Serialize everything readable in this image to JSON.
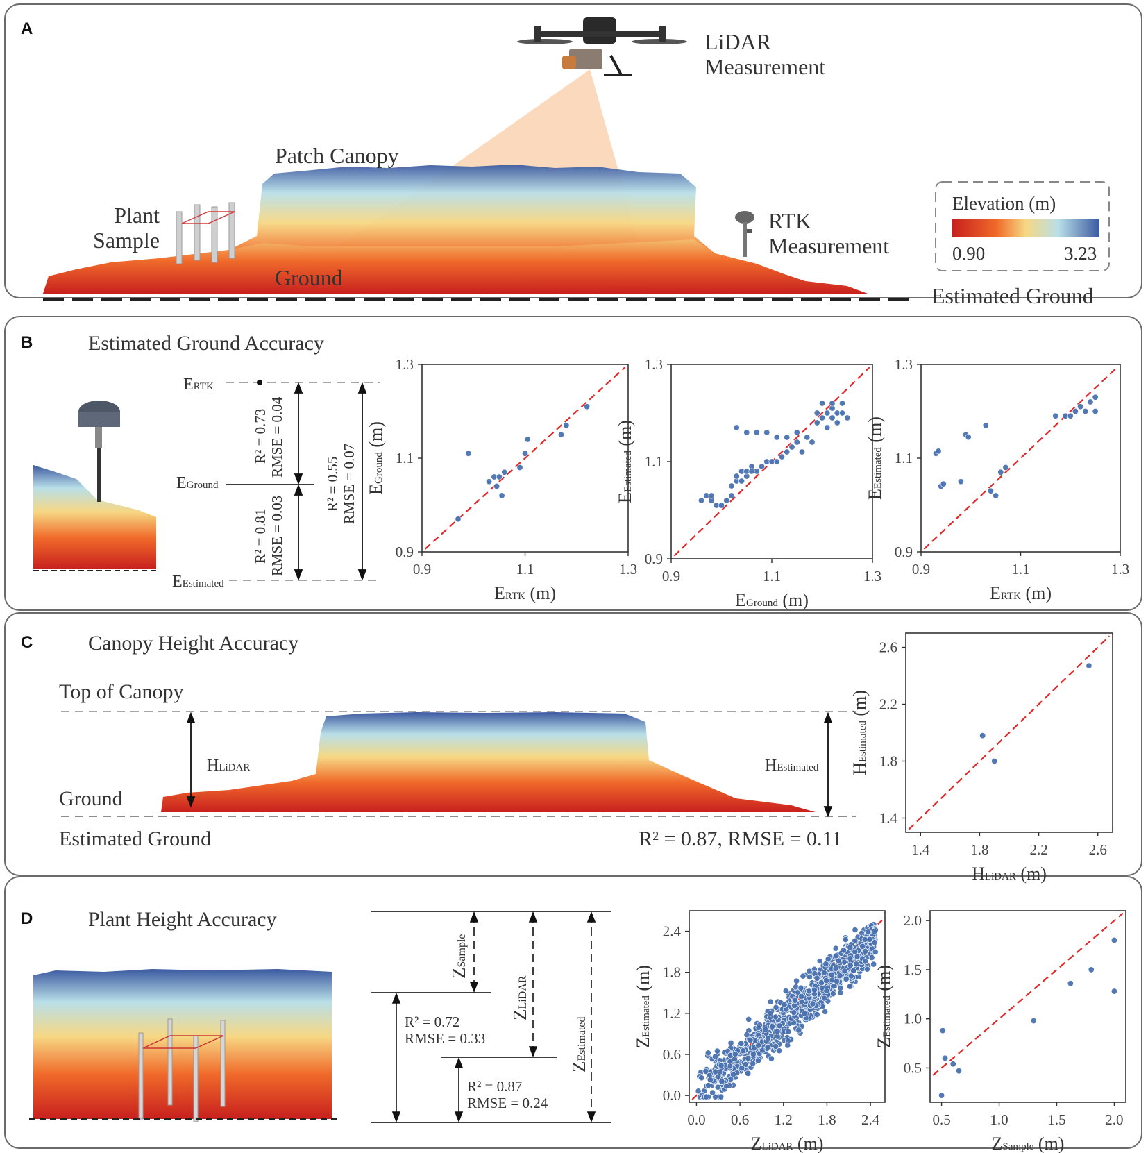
{
  "panel_a": {
    "label": "A",
    "lidar_line1": "LiDAR",
    "lidar_line2": "Measurement",
    "patch_canopy": "Patch Canopy",
    "plant_line1": "Plant",
    "plant_line2": "Sample",
    "ground": "Ground",
    "rtk_line1": "RTK",
    "rtk_line2": "Measurement",
    "estimated_ground": "Estimated Ground",
    "legend": {
      "title": "Elevation (m)",
      "min": "0.90",
      "max": "3.23",
      "colors": [
        "#c8201e",
        "#f06a2a",
        "#f6d884",
        "#b9dfe8",
        "#3c5aa0"
      ]
    }
  },
  "panel_b": {
    "label": "B",
    "title": "Estimated Ground Accuracy",
    "e_rtk": "E",
    "e_rtk_sub": "RTK",
    "e_ground": "E",
    "e_ground_sub": "Ground",
    "e_estimated": "E",
    "e_estimated_sub": "Estimated",
    "stat1_r2": "R² = 0.73",
    "stat1_rmse": "RMSE = 0.04",
    "stat2_r2": "R² = 0.81",
    "stat2_rmse": "RMSE = 0.03",
    "stat3_r2": "R² = 0.55",
    "stat3_rmse": "RMSE = 0.07"
  },
  "panel_c": {
    "label": "C",
    "title": "Canopy Height Accuracy",
    "top_of_canopy": "Top of Canopy",
    "ground": "Ground",
    "estimated_ground": "Estimated Ground",
    "h_lidar": "H",
    "h_lidar_sub": "LiDAR",
    "h_estimated": "H",
    "h_estimated_sub": "Estimated",
    "stats": "R² = 0.87, RMSE = 0.11"
  },
  "panel_d": {
    "label": "D",
    "title": "Plant Height Accuracy",
    "z_sample": "Z",
    "z_sample_sub": "Sample",
    "z_lidar": "Z",
    "z_lidar_sub": "LiDAR",
    "z_estimated": "Z",
    "z_estimated_sub": "Estimated",
    "stat1_r2": "R² = 0.72",
    "stat1_rmse": "RMSE = 0.33",
    "stat2_r2": "R² = 0.87",
    "stat2_rmse": "RMSE = 0.24"
  },
  "chart_data": [
    {
      "id": "b1",
      "type": "scatter",
      "xlabel": "E",
      "xlabel_sub": "RTK",
      "xlabel_unit": " (m)",
      "ylabel": "E",
      "ylabel_sub": "Ground",
      "ylabel_unit": " (m)",
      "xlim": [
        0.9,
        1.3
      ],
      "ylim": [
        0.9,
        1.3
      ],
      "xticks": [
        "0.9",
        "1.1",
        "1.3"
      ],
      "yticks": [
        "0.9",
        "1.1",
        "1.3"
      ],
      "reference_line": "y = x",
      "points": [
        [
          0.97,
          0.97
        ],
        [
          0.99,
          1.11
        ],
        [
          1.03,
          1.05
        ],
        [
          1.04,
          1.06
        ],
        [
          1.045,
          1.04
        ],
        [
          1.05,
          1.06
        ],
        [
          1.055,
          1.02
        ],
        [
          1.06,
          1.07
        ],
        [
          1.09,
          1.08
        ],
        [
          1.1,
          1.11
        ],
        [
          1.105,
          1.14
        ],
        [
          1.17,
          1.15
        ],
        [
          1.18,
          1.17
        ],
        [
          1.22,
          1.21
        ]
      ]
    },
    {
      "id": "b2",
      "type": "scatter",
      "xlabel": "E",
      "xlabel_sub": "Ground",
      "xlabel_unit": " (m)",
      "ylabel": "E",
      "ylabel_sub": "Estimated",
      "ylabel_unit": " (m)",
      "xlim": [
        0.9,
        1.3
      ],
      "ylim": [
        0.9,
        1.3
      ],
      "xticks": [
        "0.9",
        "1.1",
        "1.3"
      ],
      "yticks": [
        "0.9",
        "1.1",
        "1.3"
      ],
      "reference_line": "y = x",
      "points": [
        [
          0.96,
          1.02
        ],
        [
          0.97,
          1.03
        ],
        [
          0.98,
          1.02
        ],
        [
          0.99,
          1.01
        ],
        [
          1.0,
          1.01
        ],
        [
          1.01,
          1.02
        ],
        [
          1.02,
          1.03
        ],
        [
          1.02,
          1.05
        ],
        [
          1.03,
          1.06
        ],
        [
          1.03,
          1.07
        ],
        [
          1.04,
          1.08
        ],
        [
          1.04,
          1.06
        ],
        [
          1.05,
          1.07
        ],
        [
          1.05,
          1.08
        ],
        [
          1.06,
          1.09
        ],
        [
          1.07,
          1.08
        ],
        [
          1.08,
          1.09
        ],
        [
          1.09,
          1.1
        ],
        [
          1.1,
          1.1
        ],
        [
          1.11,
          1.1
        ],
        [
          1.12,
          1.11
        ],
        [
          1.13,
          1.12
        ],
        [
          1.14,
          1.13
        ],
        [
          1.15,
          1.14
        ],
        [
          1.16,
          1.12
        ],
        [
          1.03,
          1.17
        ],
        [
          1.05,
          1.16
        ],
        [
          1.07,
          1.16
        ],
        [
          1.09,
          1.16
        ],
        [
          1.11,
          1.15
        ],
        [
          1.13,
          1.15
        ],
        [
          1.15,
          1.16
        ],
        [
          1.17,
          1.15
        ],
        [
          1.18,
          1.14
        ],
        [
          1.19,
          1.18
        ],
        [
          1.2,
          1.19
        ],
        [
          1.21,
          1.2
        ],
        [
          1.22,
          1.21
        ],
        [
          1.23,
          1.2
        ],
        [
          1.24,
          1.22
        ],
        [
          1.2,
          1.22
        ],
        [
          1.22,
          1.19
        ],
        [
          1.23,
          1.18
        ],
        [
          1.25,
          1.19
        ],
        [
          1.21,
          1.17
        ],
        [
          1.24,
          1.2
        ],
        [
          1.19,
          1.2
        ],
        [
          1.22,
          1.22
        ],
        [
          0.98,
          1.03
        ],
        [
          1.06,
          1.08
        ]
      ]
    },
    {
      "id": "b3",
      "type": "scatter",
      "xlabel": "E",
      "xlabel_sub": "RTK",
      "xlabel_unit": " (m)",
      "ylabel": "E",
      "ylabel_sub": "Estimated",
      "ylabel_unit": " (m)",
      "xlim": [
        0.9,
        1.3
      ],
      "ylim": [
        0.9,
        1.3
      ],
      "xticks": [
        "0.9",
        "1.1",
        "1.3"
      ],
      "yticks": [
        "0.9",
        "1.1",
        "1.3"
      ],
      "reference_line": "y = x",
      "points": [
        [
          0.93,
          1.11
        ],
        [
          0.935,
          1.115
        ],
        [
          0.94,
          1.04
        ],
        [
          0.945,
          1.045
        ],
        [
          0.98,
          1.05
        ],
        [
          0.99,
          1.15
        ],
        [
          0.995,
          1.145
        ],
        [
          1.03,
          1.17
        ],
        [
          1.04,
          1.03
        ],
        [
          1.05,
          1.02
        ],
        [
          1.06,
          1.07
        ],
        [
          1.07,
          1.08
        ],
        [
          1.17,
          1.19
        ],
        [
          1.19,
          1.19
        ],
        [
          1.2,
          1.19
        ],
        [
          1.21,
          1.2
        ],
        [
          1.22,
          1.21
        ],
        [
          1.23,
          1.2
        ],
        [
          1.24,
          1.22
        ],
        [
          1.25,
          1.2
        ],
        [
          1.25,
          1.23
        ]
      ]
    },
    {
      "id": "c1",
      "type": "scatter",
      "xlabel": "H",
      "xlabel_sub": "LiDAR",
      "xlabel_unit": " (m)",
      "ylabel": "H",
      "ylabel_sub": "Estimated",
      "ylabel_unit": " (m)",
      "xlim": [
        1.3,
        2.7
      ],
      "ylim": [
        1.3,
        2.7
      ],
      "xticks": [
        "1.4",
        "1.8",
        "2.2",
        "2.6"
      ],
      "yticks": [
        "1.4",
        "1.8",
        "2.2",
        "2.6"
      ],
      "reference_line": "y = x",
      "points": [
        [
          1.82,
          1.98
        ],
        [
          1.9,
          1.8
        ],
        [
          2.54,
          2.47
        ]
      ]
    },
    {
      "id": "d1",
      "type": "scatter",
      "xlabel": "Z",
      "xlabel_sub": "LiDAR",
      "xlabel_unit": " (m)",
      "ylabel": "Z",
      "ylabel_sub": "Estimated",
      "ylabel_unit": " (m)",
      "xlim": [
        -0.1,
        2.6
      ],
      "ylim": [
        -0.1,
        2.7
      ],
      "xticks": [
        "0.0",
        "0.6",
        "1.2",
        "1.8",
        "2.4"
      ],
      "yticks": [
        "0.0",
        "0.6",
        "1.2",
        "1.8",
        "2.4"
      ],
      "reference_line": "y = x",
      "dense_cloud": true,
      "n_points": 900,
      "noise_sd": 0.17
    },
    {
      "id": "d2",
      "type": "scatter",
      "xlabel": "Z",
      "xlabel_sub": "Sample",
      "xlabel_unit": " (m)",
      "ylabel": "Z",
      "ylabel_sub": "Estimated",
      "ylabel_unit": " (m)",
      "xlim": [
        0.4,
        2.1
      ],
      "ylim": [
        0.15,
        2.1
      ],
      "xticks": [
        "0.5",
        "1.0",
        "1.5",
        "2.0"
      ],
      "yticks": [
        "0.5",
        "1.0",
        "1.5",
        "2.0"
      ],
      "reference_line": "y = x",
      "points": [
        [
          0.5,
          0.22
        ],
        [
          0.51,
          0.88
        ],
        [
          0.53,
          0.6
        ],
        [
          0.6,
          0.54
        ],
        [
          0.65,
          0.47
        ],
        [
          1.3,
          0.98
        ],
        [
          1.62,
          1.36
        ],
        [
          1.8,
          1.5
        ],
        [
          2.0,
          1.8
        ],
        [
          2.0,
          1.28
        ]
      ]
    }
  ]
}
